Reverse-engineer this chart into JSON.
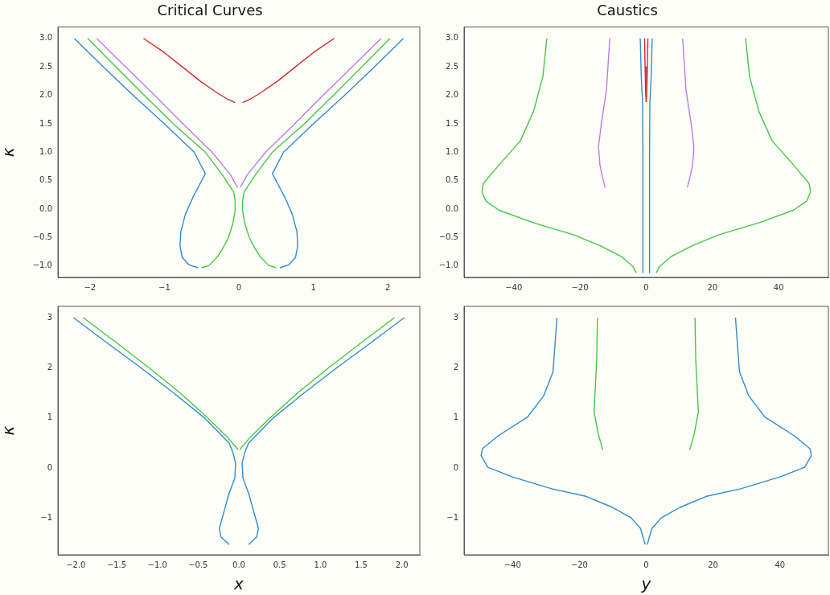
{
  "chart_data": [
    {
      "type": "line",
      "title": "Critical Curves",
      "ylabel": "κ",
      "xlim": [
        -2.43,
        2.43
      ],
      "ylim": [
        -1.2,
        3.2
      ],
      "xticks": [
        {
          "value": -2,
          "label": "−2"
        },
        {
          "value": -1,
          "label": "−1"
        },
        0,
        1,
        2
      ],
      "yticks": [
        {
          "value": -1,
          "label": "−1.0"
        },
        {
          "value": -0.5,
          "label": "−0.5"
        },
        {
          "value": 0,
          "label": "0.0"
        },
        0.5,
        {
          "value": 1,
          "label": "1.0"
        },
        1.5,
        {
          "value": 2,
          "label": "2.0"
        },
        2.5,
        {
          "value": 3,
          "label": "3.0"
        }
      ],
      "series": [
        {
          "color": "#2f8ccc",
          "x": [
            2.21,
            1.82,
            1.42,
            1.0,
            0.6,
            0.45,
            0.52,
            0.62,
            0.72,
            0.78,
            0.79,
            0.76,
            0.67,
            0.55
          ],
          "values": [
            3,
            2.5,
            2,
            1.5,
            1,
            0.62,
            0.45,
            0.2,
            -0.1,
            -0.4,
            -0.65,
            -0.85,
            -0.98,
            -1.03
          ]
        },
        {
          "color": "#2f8ccc",
          "x": [
            -2.21,
            -1.82,
            -1.42,
            -1.0,
            -0.6,
            -0.45,
            -0.52,
            -0.62,
            -0.72,
            -0.78,
            -0.79,
            -0.76,
            -0.67,
            -0.55
          ],
          "values": [
            3,
            2.5,
            2,
            1.5,
            1,
            0.62,
            0.45,
            0.2,
            -0.1,
            -0.4,
            -0.65,
            -0.85,
            -0.98,
            -1.03
          ]
        },
        {
          "color": "#44c844",
          "x": [
            2.03,
            1.65,
            1.27,
            0.88,
            0.45,
            0.22,
            0.07,
            0.05,
            0.05,
            0.08,
            0.14,
            0.22,
            0.29,
            0.4,
            0.5
          ],
          "values": [
            3,
            2.5,
            2,
            1.5,
            1,
            0.6,
            0.3,
            0.15,
            -0.03,
            -0.25,
            -0.5,
            -0.7,
            -0.84,
            -0.99,
            -1.03
          ]
        },
        {
          "color": "#44c844",
          "x": [
            -2.03,
            -1.65,
            -1.27,
            -0.88,
            -0.45,
            -0.22,
            -0.07,
            -0.05,
            -0.05,
            -0.08,
            -0.14,
            -0.22,
            -0.29,
            -0.4,
            -0.5
          ],
          "values": [
            3,
            2.5,
            2,
            1.5,
            1,
            0.6,
            0.3,
            0.15,
            -0.03,
            -0.25,
            -0.5,
            -0.7,
            -0.84,
            -0.99,
            -1.03
          ]
        },
        {
          "color": "#b87fe0",
          "x": [
            1.91,
            1.52,
            1.13,
            0.75,
            0.36,
            0.11,
            0.02
          ],
          "values": [
            3,
            2.5,
            2,
            1.5,
            1,
            0.6,
            0.38
          ]
        },
        {
          "color": "#b87fe0",
          "x": [
            -1.91,
            -1.52,
            -1.13,
            -0.75,
            -0.36,
            -0.11,
            -0.02
          ],
          "values": [
            3,
            2.5,
            2,
            1.5,
            1,
            0.6,
            0.38
          ]
        },
        {
          "color": "#d42a2a",
          "x": [
            1.28,
            1.0,
            0.76,
            0.52,
            0.3,
            0.15,
            0.05
          ],
          "values": [
            3,
            2.75,
            2.5,
            2.25,
            2.05,
            1.93,
            1.87
          ]
        },
        {
          "color": "#d42a2a",
          "x": [
            -1.28,
            -1.0,
            -0.76,
            -0.52,
            -0.3,
            -0.15,
            -0.05
          ],
          "values": [
            3,
            2.75,
            2.5,
            2.25,
            2.05,
            1.93,
            1.87
          ]
        }
      ]
    },
    {
      "type": "line",
      "title": "Caustics",
      "xlim": [
        -55,
        55
      ],
      "ylim": [
        -1.2,
        3.2
      ],
      "xticks": [
        {
          "value": -40,
          "label": "−40"
        },
        {
          "value": -20,
          "label": "−20"
        },
        0,
        20,
        40
      ],
      "yticks": [
        {
          "value": -1,
          "label": "−1.0"
        },
        {
          "value": -0.5,
          "label": "−0.5"
        },
        {
          "value": 0,
          "label": "0.0"
        },
        0.5,
        {
          "value": 1,
          "label": "1.0"
        },
        1.5,
        {
          "value": 2,
          "label": "2.0"
        },
        2.5,
        {
          "value": 3,
          "label": "3.0"
        }
      ],
      "series": [
        {
          "color": "#44c844",
          "x": [
            30,
            31.2,
            34,
            38,
            44.4,
            49.2,
            49.6,
            48.4,
            44.4,
            34,
            22,
            14,
            7.6,
            4,
            3
          ],
          "values": [
            3,
            2.33,
            1.72,
            1.2,
            0.78,
            0.45,
            0.3,
            0.14,
            -0.02,
            -0.24,
            -0.45,
            -0.64,
            -0.83,
            -1.01,
            -1.12
          ]
        },
        {
          "color": "#44c844",
          "x": [
            -30,
            -31.2,
            -34,
            -38,
            -44.4,
            -49.2,
            -49.6,
            -48.4,
            -44.4,
            -34,
            -22,
            -14,
            -7.6,
            -4,
            -3
          ],
          "values": [
            3,
            2.33,
            1.72,
            1.2,
            0.78,
            0.45,
            0.3,
            0.14,
            -0.02,
            -0.24,
            -0.45,
            -0.64,
            -0.83,
            -1.01,
            -1.12
          ]
        },
        {
          "color": "#2f8ccc",
          "x": [
            1.8,
            1.5,
            1.1,
            1,
            1
          ],
          "values": [
            3,
            2.33,
            1.86,
            1,
            -1.12
          ]
        },
        {
          "color": "#2f8ccc",
          "x": [
            -1.8,
            -1.5,
            -1.1,
            -1,
            -1
          ],
          "values": [
            3,
            2.33,
            1.86,
            1,
            -1.12
          ]
        },
        {
          "color": "#b87fe0",
          "x": [
            11,
            12,
            13.6,
            14.4,
            14,
            13.2,
            12.4
          ],
          "values": [
            3,
            2.1,
            1.48,
            1.1,
            0.78,
            0.56,
            0.38
          ]
        },
        {
          "color": "#b87fe0",
          "x": [
            -11,
            -12,
            -13.6,
            -14.4,
            -14,
            -13.2,
            -12.4
          ],
          "values": [
            3,
            2.1,
            1.48,
            1.1,
            0.78,
            0.56,
            0.38
          ]
        },
        {
          "color": "#d42a2a",
          "x": [
            0.5,
            0.35,
            0.15,
            0
          ],
          "values": [
            3,
            2.5,
            2,
            1.88
          ]
        },
        {
          "color": "#d42a2a",
          "x": [
            -0.5,
            -0.35,
            -0.15,
            0
          ],
          "values": [
            3,
            2.5,
            2,
            1.88
          ]
        }
      ]
    },
    {
      "type": "line",
      "xlabel": "x",
      "ylabel": "κ",
      "xlim": [
        -2.22,
        2.22
      ],
      "ylim": [
        -1.725,
        3.225
      ],
      "xticks": [
        {
          "value": -2,
          "label": "−2.0"
        },
        {
          "value": -1.5,
          "label": "−1.5"
        },
        {
          "value": -1,
          "label": "−1.0"
        },
        {
          "value": -0.5,
          "label": "−0.5"
        },
        {
          "value": 0,
          "label": "0.0"
        },
        0.5,
        {
          "value": 1,
          "label": "1.0"
        },
        1.5,
        {
          "value": 2,
          "label": "2.0"
        }
      ],
      "yticks": [
        {
          "value": -1,
          "label": "−1"
        },
        0,
        1,
        2,
        3
      ],
      "series": [
        {
          "color": "#2f8ccc",
          "x": [
            2.03,
            1.62,
            1.2,
            0.8,
            0.42,
            0.12,
            0.07,
            0.04,
            0.05,
            0.12,
            0.18,
            0.24,
            0.22,
            0.12
          ],
          "values": [
            3,
            2.5,
            2,
            1.5,
            1,
            0.5,
            0.3,
            0.1,
            -0.2,
            -0.5,
            -0.85,
            -1.2,
            -1.37,
            -1.52
          ]
        },
        {
          "color": "#2f8ccc",
          "x": [
            -2.03,
            -1.62,
            -1.2,
            -0.8,
            -0.42,
            -0.12,
            -0.07,
            -0.04,
            -0.05,
            -0.12,
            -0.18,
            -0.24,
            -0.22,
            -0.12
          ],
          "values": [
            3,
            2.5,
            2,
            1.5,
            1,
            0.5,
            0.3,
            0.1,
            -0.2,
            -0.5,
            -0.85,
            -1.2,
            -1.37,
            -1.52
          ]
        },
        {
          "color": "#44c844",
          "x": [
            1.91,
            1.5,
            1.1,
            0.72,
            0.38,
            0.13,
            0.01
          ],
          "values": [
            3,
            2.5,
            2,
            1.5,
            1,
            0.6,
            0.37
          ]
        },
        {
          "color": "#44c844",
          "x": [
            -1.91,
            -1.5,
            -1.1,
            -0.72,
            -0.38,
            -0.13,
            -0.01
          ],
          "values": [
            3,
            2.5,
            2,
            1.5,
            1,
            0.6,
            0.37
          ]
        }
      ]
    },
    {
      "type": "line",
      "xlabel": "y",
      "xlim": [
        -54.5,
        54.5
      ],
      "ylim": [
        -1.725,
        3.225
      ],
      "xticks": [
        {
          "value": -40,
          "label": "−40"
        },
        {
          "value": -20,
          "label": "−20"
        },
        0,
        20,
        40
      ],
      "yticks": [
        {
          "value": -1,
          "label": "−1"
        },
        0,
        1,
        2,
        3
      ],
      "series": [
        {
          "color": "#2f8ccc",
          "x": [
            26.7,
            27.9,
            30.7,
            35.5,
            44.2,
            49,
            49.4,
            47.4,
            40.2,
            28.3,
            18,
            10.1,
            4.5,
            1.7,
            0.3
          ],
          "values": [
            3,
            1.92,
            1.44,
            1.02,
            0.65,
            0.39,
            0.25,
            0.02,
            -0.17,
            -0.41,
            -0.56,
            -0.78,
            -0.99,
            -1.2,
            -1.52
          ]
        },
        {
          "color": "#2f8ccc",
          "x": [
            -26.7,
            -27.9,
            -30.7,
            -35.5,
            -44.2,
            -49,
            -49.4,
            -47.4,
            -40.2,
            -28.3,
            -18,
            -10.1,
            -4.5,
            -1.7,
            -0.3
          ],
          "values": [
            3,
            1.92,
            1.44,
            1.02,
            0.65,
            0.39,
            0.25,
            0.02,
            -0.17,
            -0.41,
            -0.56,
            -0.78,
            -0.99,
            -1.2,
            -1.52
          ]
        },
        {
          "color": "#44c844",
          "x": [
            14.6,
            14.8,
            15.6,
            14.4,
            13
          ],
          "values": [
            3,
            2.18,
            1.12,
            0.7,
            0.36
          ]
        },
        {
          "color": "#44c844",
          "x": [
            -14.6,
            -14.8,
            -15.6,
            -14.4,
            -13
          ],
          "values": [
            3,
            2.18,
            1.12,
            0.7,
            0.36
          ]
        }
      ]
    }
  ]
}
